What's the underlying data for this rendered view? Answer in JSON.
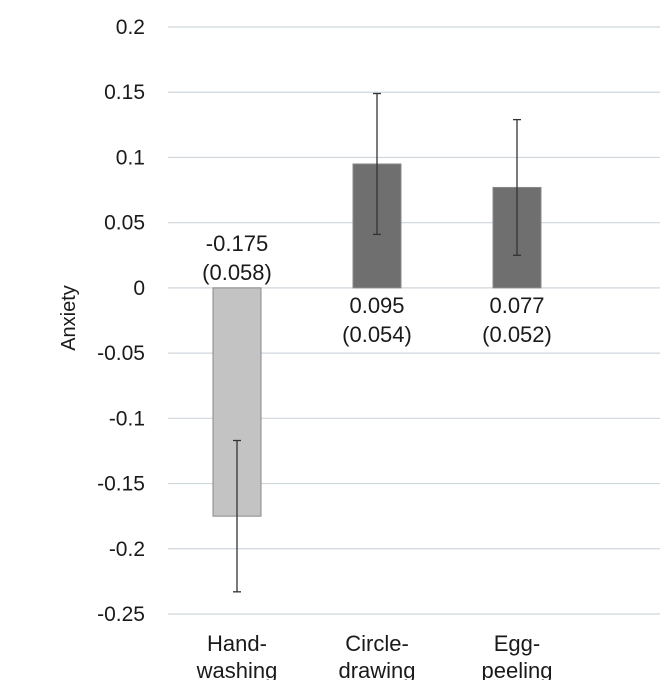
{
  "chart_data": {
    "type": "bar",
    "title": "",
    "xlabel": "",
    "ylabel": "Anxiety",
    "ylim": [
      -0.25,
      0.2
    ],
    "yticks": [
      0.2,
      0.15,
      0.1,
      0.05,
      0,
      -0.05,
      -0.1,
      -0.15,
      -0.2,
      -0.25
    ],
    "ytick_labels": [
      "0.2",
      "0.15",
      "0.1",
      "0.05",
      "0",
      "-0.05",
      "-0.1",
      "-0.15",
      "-0.2",
      "-0.25"
    ],
    "grid": true,
    "legend": "none",
    "categories": [
      [
        "Hand-",
        "washing"
      ],
      [
        "Circle-",
        "drawing"
      ],
      [
        "Egg-",
        "peeling"
      ]
    ],
    "values": [
      -0.175,
      0.095,
      0.077
    ],
    "errors": [
      0.058,
      0.054,
      0.052
    ],
    "value_labels": [
      [
        "-0.175",
        "(0.058)"
      ],
      [
        "0.095",
        "(0.054)"
      ],
      [
        "0.077",
        "(0.052)"
      ]
    ],
    "colors": [
      "#c3c3c3",
      "#6f6f6f",
      "#6f6f6f"
    ],
    "bar_edge_color": "#8a8a8a",
    "grid_color": "#cfd6dc"
  }
}
